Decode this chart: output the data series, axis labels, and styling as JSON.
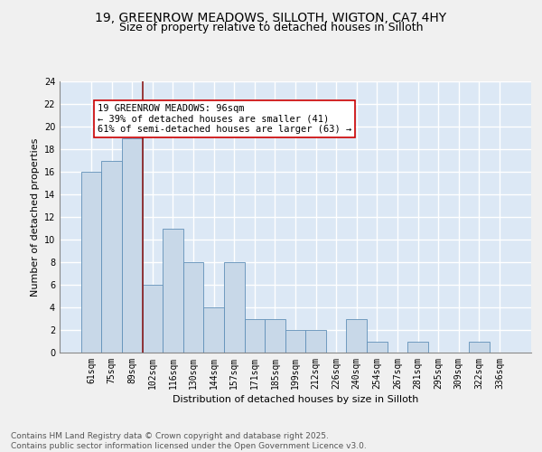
{
  "title1": "19, GREENROW MEADOWS, SILLOTH, WIGTON, CA7 4HY",
  "title2": "Size of property relative to detached houses in Silloth",
  "xlabel": "Distribution of detached houses by size in Silloth",
  "ylabel": "Number of detached properties",
  "categories": [
    "61sqm",
    "75sqm",
    "89sqm",
    "102sqm",
    "116sqm",
    "130sqm",
    "144sqm",
    "157sqm",
    "171sqm",
    "185sqm",
    "199sqm",
    "212sqm",
    "226sqm",
    "240sqm",
    "254sqm",
    "267sqm",
    "281sqm",
    "295sqm",
    "309sqm",
    "322sqm",
    "336sqm"
  ],
  "values": [
    16,
    17,
    19,
    6,
    11,
    8,
    4,
    8,
    3,
    3,
    2,
    2,
    0,
    3,
    1,
    0,
    1,
    0,
    0,
    1,
    0
  ],
  "bar_color": "#c8d8e8",
  "bar_edge_color": "#6090b8",
  "bar_width": 1.0,
  "vline_x_index": 2,
  "vline_color": "#8b1a1a",
  "annotation_line1": "19 GREENROW MEADOWS: 96sqm",
  "annotation_line2": "← 39% of detached houses are smaller (41)",
  "annotation_line3": "61% of semi-detached houses are larger (63) →",
  "annotation_box_color": "#ffffff",
  "annotation_box_edge": "#cc0000",
  "ylim": [
    0,
    24
  ],
  "yticks": [
    0,
    2,
    4,
    6,
    8,
    10,
    12,
    14,
    16,
    18,
    20,
    22,
    24
  ],
  "background_color": "#dce8f5",
  "grid_color": "#ffffff",
  "figure_bg": "#f0f0f0",
  "footer_text": "Contains HM Land Registry data © Crown copyright and database right 2025.\nContains public sector information licensed under the Open Government Licence v3.0.",
  "title_fontsize": 10,
  "subtitle_fontsize": 9,
  "axis_label_fontsize": 8,
  "tick_fontsize": 7,
  "annotation_fontsize": 7.5,
  "footer_fontsize": 6.5
}
